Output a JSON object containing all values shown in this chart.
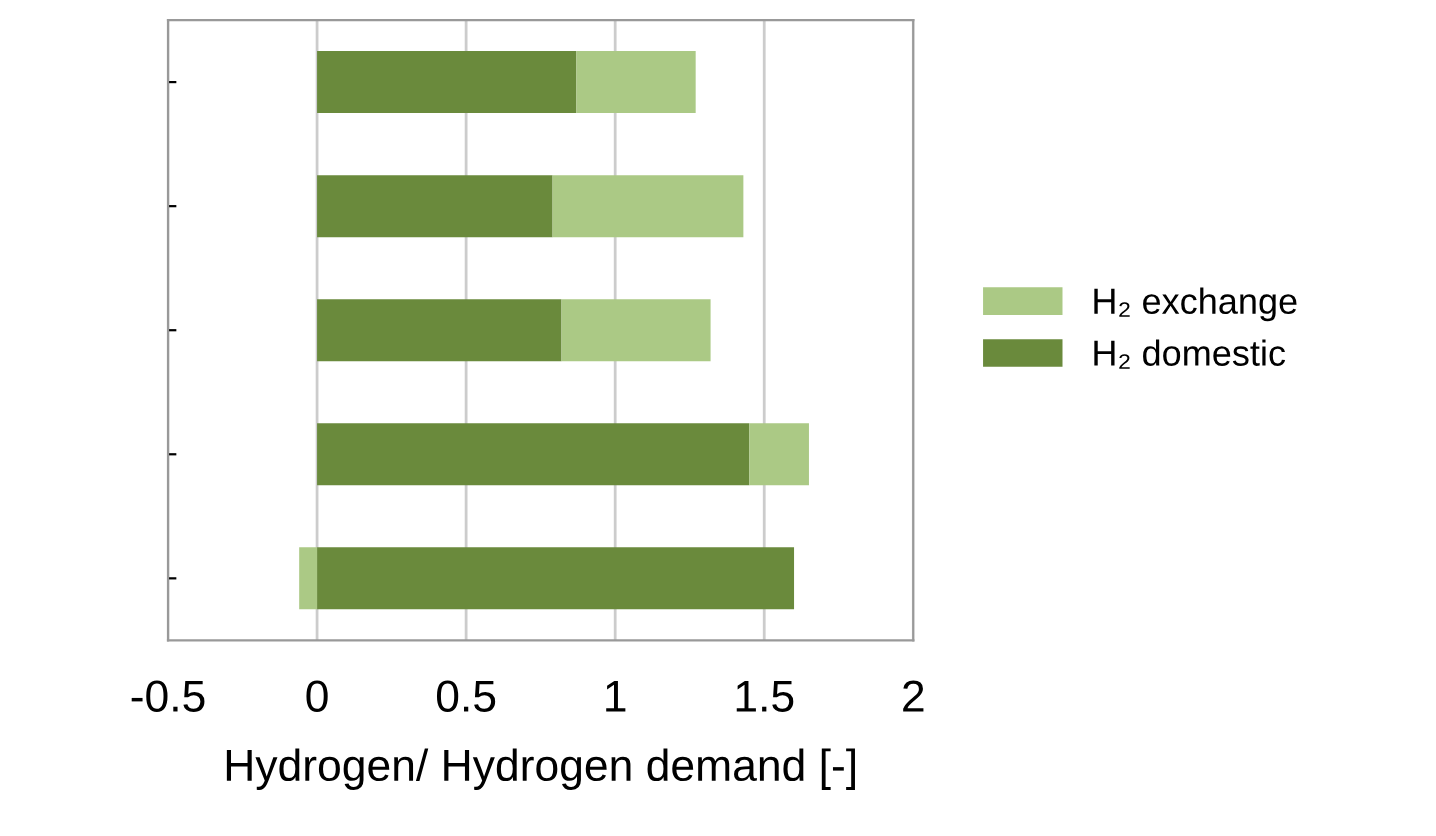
{
  "chart_data": {
    "type": "bar",
    "orientation": "horizontal",
    "stacked": true,
    "categories": [
      null,
      null,
      null,
      null,
      null
    ],
    "series": [
      {
        "name": "H₂ domestic",
        "color": "#6a8a3c",
        "values": [
          0.87,
          0.79,
          0.82,
          1.45,
          1.6
        ]
      },
      {
        "name": "H₂ exchange",
        "color": "#abc985",
        "values": [
          0.4,
          0.64,
          0.5,
          0.2,
          -0.06
        ]
      }
    ],
    "xlabel": "Hydrogen/ Hydrogen demand [-]",
    "xlim": [
      -0.5,
      2
    ],
    "xticks": [
      {
        "value": -0.5,
        "label": "-0.5"
      },
      0,
      0.5,
      1,
      1.5,
      2
    ],
    "grid": "x",
    "legend": "right",
    "tick_labels": "x"
  }
}
